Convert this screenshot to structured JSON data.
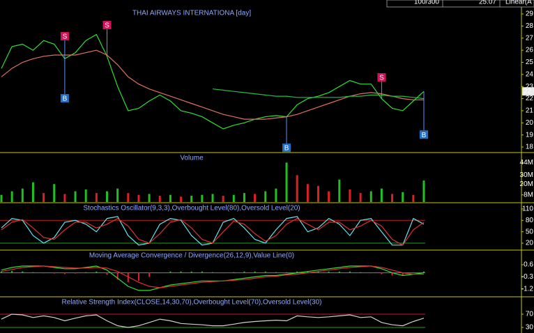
{
  "header": {
    "cells": [
      "100/300",
      "25.07",
      "Linear(A"
    ]
  },
  "chart_data": [
    {
      "type": "line",
      "title": "THAI AIRWAYS INTERNATIONA [day]",
      "ylim": [
        17.6,
        29.46
      ],
      "yticks": [
        18,
        19,
        20,
        21,
        22,
        23,
        24,
        25,
        26,
        27,
        28,
        29
      ],
      "last_label": {
        "value": 22.6,
        "label": "22.60"
      },
      "series": [
        {
          "color": "#30e030",
          "values": [
            24.5,
            26.3,
            26.5,
            26.0,
            26.8,
            26.5,
            25.3,
            25.8,
            26.8,
            27.3,
            25.5,
            23.0,
            21.0,
            21.2,
            21.8,
            22.3,
            21.8,
            21.0,
            20.8,
            20.5,
            20.0,
            19.5,
            19.8,
            20.0,
            20.3,
            20.5,
            20.6,
            20.5,
            21.5,
            22.0,
            22.2,
            22.5,
            23.0,
            23.5,
            23.2,
            23.2,
            22.0,
            21.2,
            21.0,
            21.8,
            22.6
          ]
        },
        {
          "color": "#e07060",
          "values": [
            23.8,
            24.5,
            25.0,
            25.3,
            25.5,
            25.6,
            25.6,
            25.6,
            25.8,
            26.0,
            25.6,
            24.8,
            23.8,
            23.2,
            22.8,
            22.5,
            22.2,
            21.9,
            21.6,
            21.3,
            21.0,
            20.7,
            20.5,
            20.3,
            20.3,
            20.3,
            20.4,
            20.5,
            20.7,
            21.0,
            21.3,
            21.6,
            21.9,
            22.2,
            22.4,
            22.5,
            22.4,
            22.2,
            22.0,
            21.9,
            21.9
          ]
        },
        {
          "color": "#20c040",
          "values": [
            null,
            null,
            null,
            null,
            null,
            null,
            null,
            null,
            null,
            null,
            null,
            null,
            null,
            null,
            null,
            null,
            null,
            null,
            null,
            null,
            22.8,
            22.7,
            22.6,
            22.5,
            22.4,
            22.3,
            22.2,
            22.2,
            22.1,
            22.1,
            22.1,
            22.1,
            22.1,
            22.2,
            22.2,
            22.3,
            22.3,
            22.2,
            22.2,
            22.1,
            22.0
          ]
        }
      ],
      "signals": [
        {
          "label": "S",
          "index": 6,
          "value": 27.16,
          "color": "#d0135b"
        },
        {
          "label": "S",
          "index": 10,
          "value": 28.08,
          "color": "#d0135b"
        },
        {
          "label": "S",
          "index": 36,
          "value": 23.76,
          "color": "#d0135b"
        },
        {
          "label": "B",
          "index": 6,
          "value": 22.03,
          "color": "#1f6fc4"
        },
        {
          "label": "B",
          "index": 27,
          "value": 17.94,
          "color": "#1f6fc4"
        },
        {
          "label": "B",
          "index": 40,
          "value": 19.03,
          "color": "#1f6fc4"
        }
      ]
    },
    {
      "type": "bar",
      "title": "Volume",
      "ylim": [
        0,
        54.4
      ],
      "yticks": [
        {
          "value": 8,
          "label": "8M"
        },
        {
          "value": 20,
          "label": "20M"
        },
        {
          "value": 30,
          "label": "30M"
        },
        {
          "value": 44,
          "label": "44M"
        }
      ],
      "series": [
        {
          "color": "#20c020",
          "down_color": "#e02020",
          "values": [
            8,
            12,
            15,
            22,
            10,
            20,
            9,
            12,
            14,
            10,
            12,
            15,
            10,
            8,
            9,
            7,
            8,
            6,
            7,
            8,
            9,
            7,
            8,
            10,
            9,
            12,
            15,
            44,
            30,
            20,
            18,
            12,
            25,
            14,
            10,
            12,
            15,
            9,
            11,
            8,
            24
          ]
        }
      ]
    },
    {
      "type": "line",
      "title": "Stochastics Oscillator(9,3,3),Overbought Level(80),Oversold Level(20)",
      "ylim": [
        3.6,
        124.5
      ],
      "yticks": [
        20,
        50,
        80,
        110
      ],
      "levels": [
        {
          "value": 80,
          "color": "#c02020"
        },
        {
          "value": 20,
          "color": "#20a020"
        }
      ],
      "series": [
        {
          "color": "#60e8f0",
          "values": [
            60,
            85,
            80,
            40,
            20,
            35,
            75,
            80,
            70,
            50,
            85,
            90,
            40,
            15,
            20,
            70,
            85,
            80,
            40,
            15,
            20,
            75,
            85,
            60,
            30,
            20,
            55,
            85,
            90,
            50,
            60,
            85,
            70,
            40,
            80,
            85,
            50,
            15,
            15,
            85,
            70
          ]
        },
        {
          "color": "#e03030",
          "values": [
            55,
            75,
            82,
            60,
            35,
            30,
            55,
            75,
            75,
            60,
            70,
            85,
            65,
            30,
            20,
            45,
            75,
            82,
            60,
            30,
            20,
            50,
            78,
            70,
            45,
            25,
            40,
            70,
            85,
            70,
            55,
            75,
            75,
            55,
            65,
            80,
            65,
            30,
            15,
            55,
            75
          ]
        }
      ]
    },
    {
      "type": "line",
      "title": "Moving Average Convergence / Divergence(26,12,9),Value Line(0)",
      "ylim": [
        -1.72,
        1.63
      ],
      "yticks": [
        -1.2,
        -0.3,
        0.6
      ],
      "levels": [
        {
          "value": 0,
          "color": "#808080"
        }
      ],
      "series": [
        {
          "style": "bar",
          "color": "#20c020",
          "down_color": "#e02020",
          "values": [
            0.1,
            0.15,
            0.1,
            0.05,
            0,
            -0.05,
            -0.1,
            -0.05,
            0.05,
            0.1,
            -0.15,
            -0.5,
            -0.7,
            -0.6,
            -0.3,
            0,
            0.1,
            0.1,
            0.1,
            0.1,
            0.05,
            0,
            0.05,
            0.1,
            0.1,
            0.1,
            0.05,
            0.05,
            0.1,
            0.1,
            0.1,
            0.1,
            0.1,
            0.1,
            0.05,
            0,
            -0.1,
            -0.2,
            -0.2,
            0,
            0.1
          ]
        },
        {
          "color": "#30e030",
          "values": [
            0.2,
            0.4,
            0.5,
            0.5,
            0.5,
            0.4,
            0.3,
            0.3,
            0.4,
            0.5,
            0.2,
            -0.4,
            -1.0,
            -1.3,
            -1.3,
            -1.1,
            -0.9,
            -0.8,
            -0.7,
            -0.6,
            -0.6,
            -0.6,
            -0.5,
            -0.4,
            -0.3,
            -0.2,
            -0.2,
            -0.1,
            0.0,
            0.1,
            0.2,
            0.3,
            0.4,
            0.5,
            0.5,
            0.5,
            0.3,
            0.0,
            -0.2,
            -0.1,
            0.0
          ]
        },
        {
          "color": "#e03030",
          "values": [
            0.1,
            0.25,
            0.4,
            0.45,
            0.5,
            0.45,
            0.4,
            0.35,
            0.35,
            0.4,
            0.35,
            0.1,
            -0.3,
            -0.7,
            -1.0,
            -1.1,
            -1.0,
            -0.9,
            -0.8,
            -0.7,
            -0.65,
            -0.6,
            -0.55,
            -0.5,
            -0.4,
            -0.3,
            -0.25,
            -0.15,
            -0.1,
            0.0,
            0.1,
            0.2,
            0.3,
            0.4,
            0.45,
            0.5,
            0.4,
            0.2,
            0.0,
            -0.1,
            -0.1
          ]
        }
      ]
    },
    {
      "type": "line",
      "title": "Relative Strength Index(CLOSE,14,30,70),Overbought Level(70),Oversold Level(30)",
      "ylim": [
        13.2,
        120.5
      ],
      "yticks": [
        30,
        70
      ],
      "levels": [
        {
          "value": 70,
          "color": "#c02020"
        },
        {
          "value": 30,
          "color": "#20a020"
        }
      ],
      "series": [
        {
          "color": "#d0d0d0",
          "values": [
            55,
            70,
            68,
            60,
            65,
            60,
            50,
            58,
            65,
            68,
            50,
            35,
            30,
            35,
            45,
            55,
            50,
            42,
            40,
            38,
            35,
            35,
            40,
            45,
            48,
            50,
            52,
            50,
            65,
            62,
            60,
            62,
            65,
            68,
            60,
            62,
            45,
            38,
            35,
            48,
            58
          ]
        }
      ]
    }
  ]
}
